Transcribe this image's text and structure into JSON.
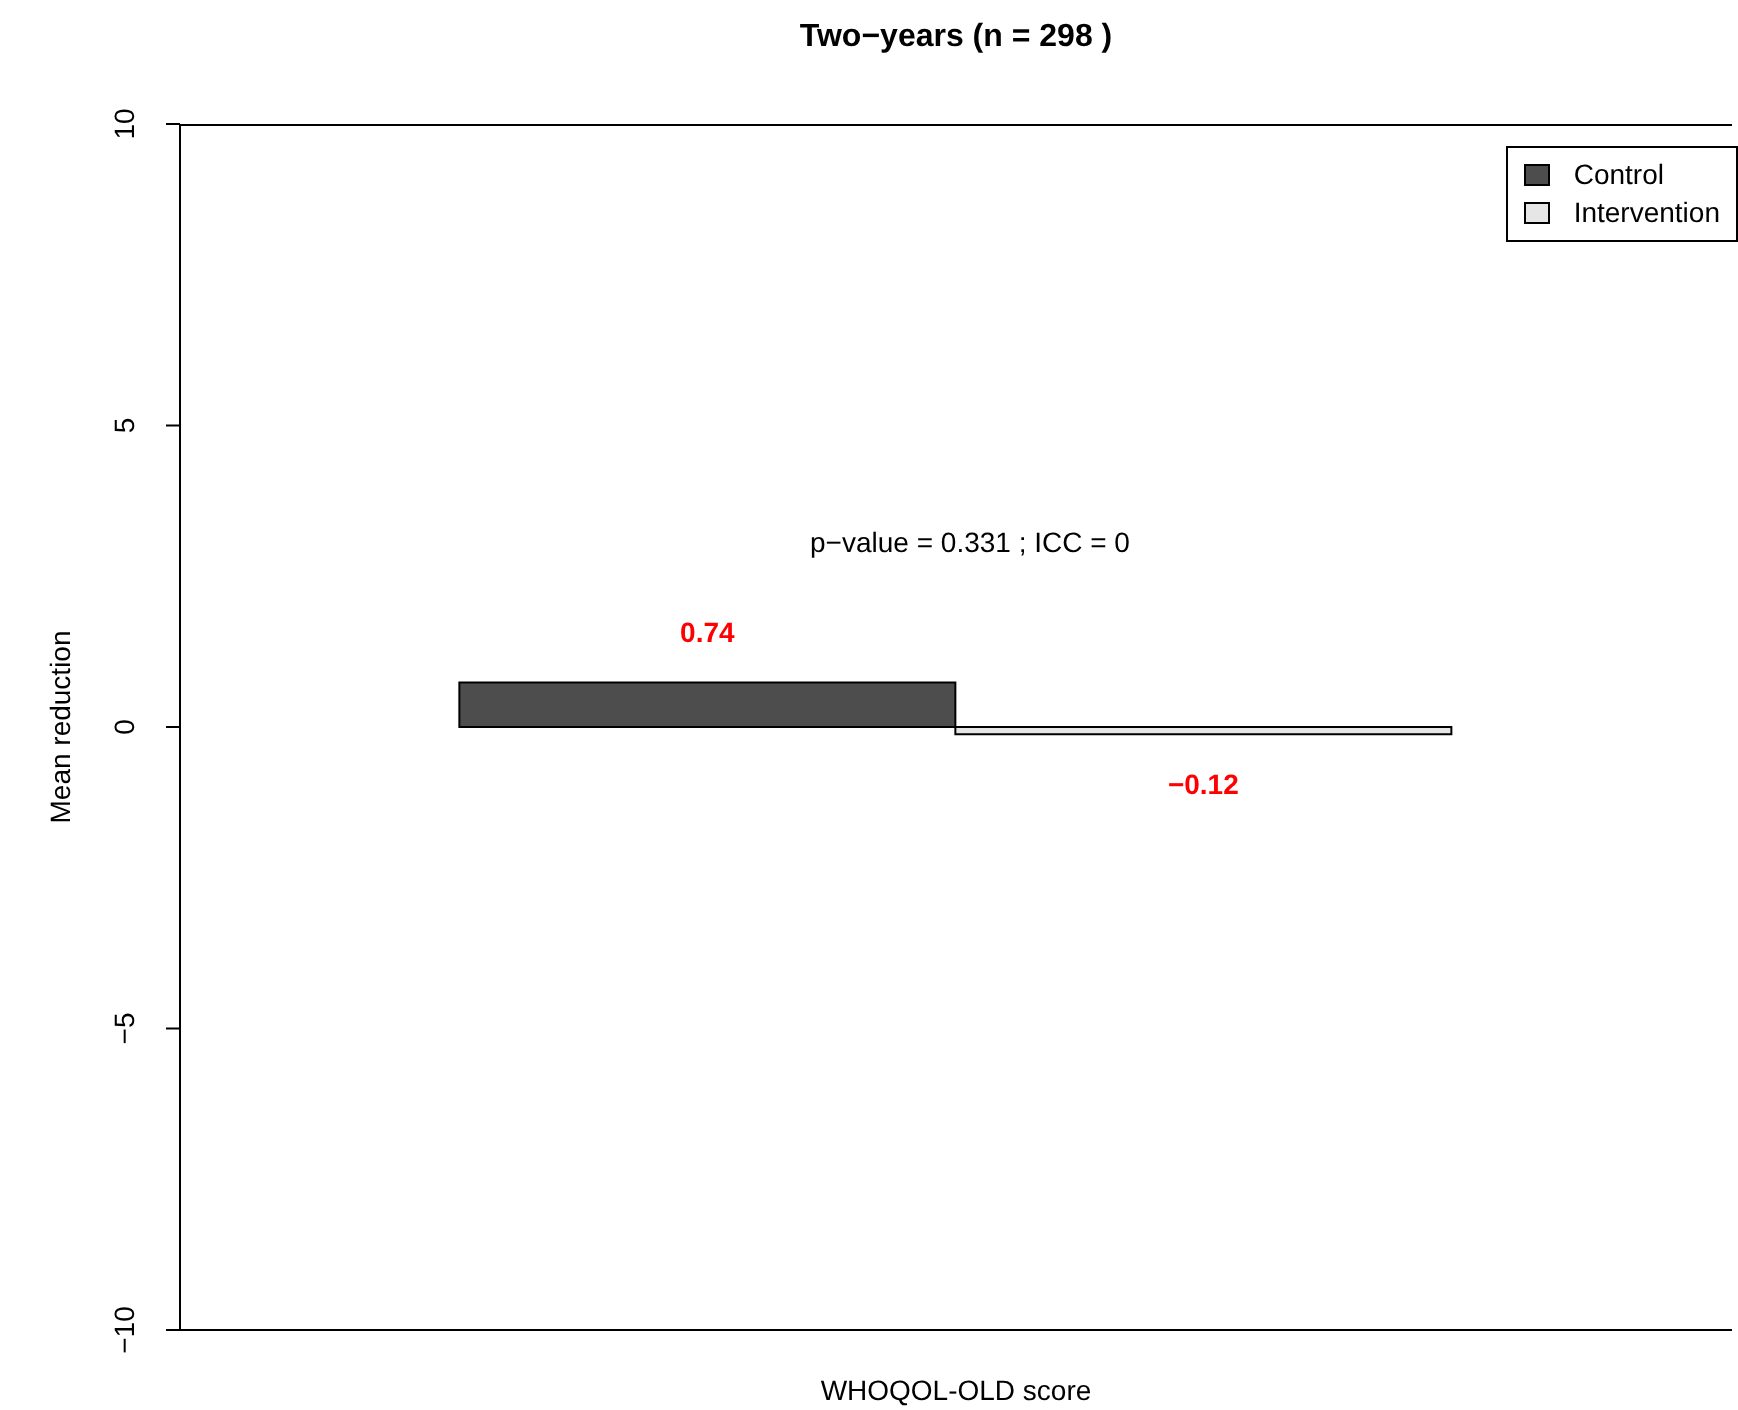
{
  "chart_data": {
    "type": "bar",
    "title": "Two−years (n =  298 )",
    "xlabel": "WHOQOL-OLD score",
    "ylabel": "Mean reduction",
    "categories": [
      null
    ],
    "series": [
      {
        "name": "Control",
        "color": "#4d4d4d",
        "values": [
          0.74
        ],
        "value_labels": [
          "0.74"
        ]
      },
      {
        "name": "Intervention",
        "color": "#e6e6e6",
        "values": [
          -0.12
        ],
        "value_labels": [
          "−0.12"
        ]
      }
    ],
    "ylim": [
      -10,
      10
    ],
    "yticks": [
      {
        "value": -10,
        "label": "−10"
      },
      {
        "value": -5,
        "label": "−5"
      },
      0,
      5,
      10
    ],
    "grid": false,
    "legend": "top right",
    "annotations": [
      "p−value =  0.331  ; ICC =  0"
    ]
  }
}
